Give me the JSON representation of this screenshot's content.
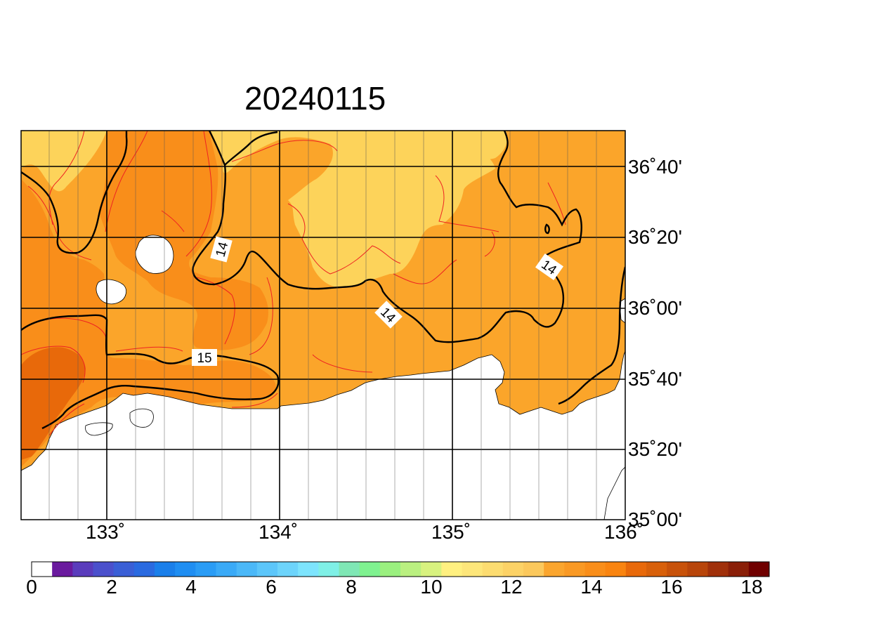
{
  "title": "20240115",
  "lon_ticks": [
    {
      "label": "133˚",
      "value": 133
    },
    {
      "label": "134˚",
      "value": 134
    },
    {
      "label": "135˚",
      "value": 135
    },
    {
      "label": "136˚",
      "value": 136
    }
  ],
  "lat_ticks": [
    {
      "label": "36˚40'",
      "value": 36.667
    },
    {
      "label": "36˚20'",
      "value": 36.333
    },
    {
      "label": "36˚00'",
      "value": 36.0
    },
    {
      "label": "35˚40'",
      "value": 35.667
    },
    {
      "label": "35˚20'",
      "value": 35.333
    },
    {
      "label": "35˚00'",
      "value": 35.0
    }
  ],
  "map_extent": {
    "lon_min": 132.45,
    "lon_max": 135.95,
    "lat_min": 35.0,
    "lat_max": 36.833
  },
  "contour_labels": [
    {
      "text": "14"
    },
    {
      "text": "14"
    },
    {
      "text": "14"
    },
    {
      "text": "15"
    }
  ],
  "colorbar": {
    "labels": [
      "0",
      "2",
      "4",
      "6",
      "8",
      "10",
      "12",
      "14",
      "16",
      "18"
    ],
    "colors": [
      "#ffffff",
      "#6a1a9e",
      "#5a3cbc",
      "#4b50cc",
      "#3a5fd6",
      "#2a6ae0",
      "#1a7fea",
      "#1f8ef2",
      "#2a9cf5",
      "#3aaaf7",
      "#4bb8f8",
      "#5cc6fa",
      "#6dd4fb",
      "#7de4fd",
      "#7ff0e6",
      "#7fe7b5",
      "#7ff290",
      "#9af07f",
      "#baf080",
      "#d8f27f",
      "#fff080",
      "#fde67a",
      "#fcdc70",
      "#fcd266",
      "#fbc85c",
      "#faa52e",
      "#f99924",
      "#f98e1a",
      "#f98410",
      "#e8690a",
      "#d8600a",
      "#c8520a",
      "#b8450a",
      "#a0300a",
      "#8a1f08",
      "#700000"
    ]
  },
  "shading_colors": {
    "level_13": "#fdd35a",
    "level_14": "#fba52a",
    "level_15": "#f98e1a",
    "level_16": "#e8690a",
    "land": "#ffffff"
  }
}
